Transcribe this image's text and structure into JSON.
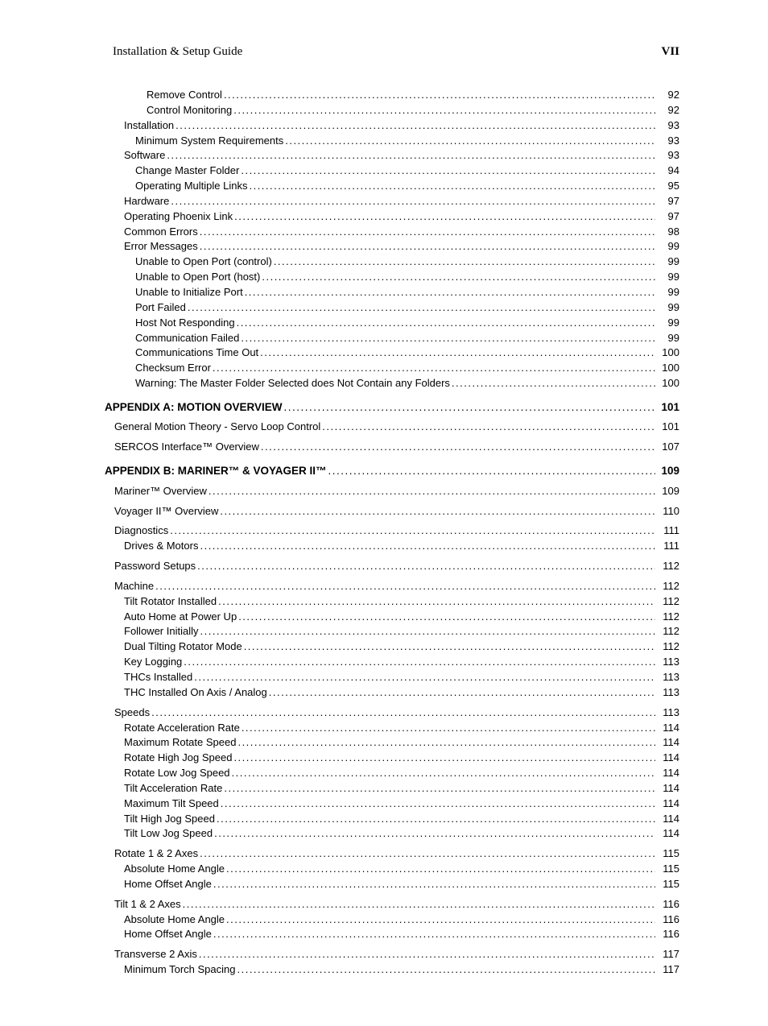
{
  "header": {
    "title": "Installation & Setup Guide",
    "page": "VII"
  },
  "toc": [
    {
      "level": 4,
      "label": "Remove Control",
      "page": "92"
    },
    {
      "level": 4,
      "label": "Control Monitoring",
      "page": "92"
    },
    {
      "level": 2,
      "label": "Installation",
      "page": "93"
    },
    {
      "level": 3,
      "label": "Minimum System Requirements",
      "page": "93"
    },
    {
      "level": 2,
      "label": "Software",
      "page": "93"
    },
    {
      "level": 3,
      "label": "Change Master Folder",
      "page": "94"
    },
    {
      "level": 3,
      "label": "Operating Multiple Links",
      "page": "95"
    },
    {
      "level": 2,
      "label": "Hardware",
      "page": "97"
    },
    {
      "level": 2,
      "label": "Operating Phoenix Link",
      "page": "97"
    },
    {
      "level": 2,
      "label": "Common Errors",
      "page": "98"
    },
    {
      "level": 2,
      "label": "Error Messages",
      "page": "99"
    },
    {
      "level": 3,
      "label": "Unable to Open Port (control)",
      "page": "99"
    },
    {
      "level": 3,
      "label": "Unable to Open Port (host)",
      "page": "99"
    },
    {
      "level": 3,
      "label": "Unable to Initialize Port",
      "page": "99"
    },
    {
      "level": 3,
      "label": "Port Failed",
      "page": "99"
    },
    {
      "level": 3,
      "label": "Host Not Responding",
      "page": "99"
    },
    {
      "level": 3,
      "label": "Communication Failed",
      "page": "99"
    },
    {
      "level": 3,
      "label": "Communications Time Out",
      "page": "100"
    },
    {
      "level": 3,
      "label": "Checksum Error",
      "page": "100"
    },
    {
      "level": 3,
      "label": "Warning:  The Master Folder Selected does Not Contain any Folders",
      "page": "100"
    },
    {
      "level": 0,
      "label": "APPENDIX A: MOTION OVERVIEW",
      "page": "101"
    },
    {
      "level": 1,
      "label": "General Motion Theory - Servo Loop Control",
      "page": "101"
    },
    {
      "level": 1,
      "label": "SERCOS Interface™ Overview",
      "page": "107"
    },
    {
      "level": 0,
      "label": "APPENDIX B: MARINER™ & VOYAGER II™",
      "page": "109"
    },
    {
      "level": 1,
      "label": "Mariner™ Overview",
      "page": "109"
    },
    {
      "level": 1,
      "label": "Voyager II™ Overview",
      "page": "110"
    },
    {
      "level": 1,
      "label": "Diagnostics",
      "page": "111"
    },
    {
      "level": 2,
      "label": "Drives & Motors",
      "page": "111"
    },
    {
      "level": 1,
      "label": "Password Setups",
      "page": "112"
    },
    {
      "level": 1,
      "label": "Machine",
      "page": "112"
    },
    {
      "level": 2,
      "label": "Tilt Rotator Installed",
      "page": "112"
    },
    {
      "level": 2,
      "label": "Auto Home at Power Up",
      "page": "112"
    },
    {
      "level": 2,
      "label": "Follower Initially",
      "page": "112"
    },
    {
      "level": 2,
      "label": "Dual Tilting Rotator Mode",
      "page": "112"
    },
    {
      "level": 2,
      "label": "Key Logging",
      "page": "113"
    },
    {
      "level": 2,
      "label": "THCs Installed",
      "page": "113"
    },
    {
      "level": 2,
      "label": "THC Installed On  Axis / Analog",
      "page": "113"
    },
    {
      "level": 1,
      "label": "Speeds",
      "page": "113"
    },
    {
      "level": 2,
      "label": "Rotate Acceleration Rate",
      "page": "114"
    },
    {
      "level": 2,
      "label": "Maximum Rotate Speed",
      "page": "114"
    },
    {
      "level": 2,
      "label": "Rotate High Jog Speed",
      "page": "114"
    },
    {
      "level": 2,
      "label": "Rotate Low Jog Speed",
      "page": "114"
    },
    {
      "level": 2,
      "label": "Tilt Acceleration Rate",
      "page": "114"
    },
    {
      "level": 2,
      "label": "Maximum Tilt Speed",
      "page": "114"
    },
    {
      "level": 2,
      "label": "Tilt High Jog Speed",
      "page": "114"
    },
    {
      "level": 2,
      "label": "Tilt Low Jog Speed",
      "page": "114"
    },
    {
      "level": 1,
      "label": "Rotate 1 & 2 Axes",
      "page": "115"
    },
    {
      "level": 2,
      "label": "Absolute Home Angle",
      "page": "115"
    },
    {
      "level": 2,
      "label": "Home Offset Angle",
      "page": "115"
    },
    {
      "level": 1,
      "label": "Tilt 1 & 2 Axes",
      "page": "116"
    },
    {
      "level": 2,
      "label": "Absolute Home Angle",
      "page": "116"
    },
    {
      "level": 2,
      "label": "Home Offset Angle",
      "page": "116"
    },
    {
      "level": 1,
      "label": "Transverse 2 Axis",
      "page": "117"
    },
    {
      "level": 2,
      "label": "Minimum Torch Spacing",
      "page": "117"
    }
  ]
}
